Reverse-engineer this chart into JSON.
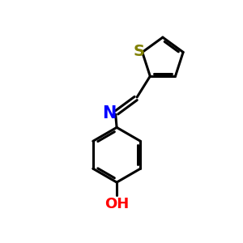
{
  "background_color": "#ffffff",
  "bond_color": "#000000",
  "S_color": "#808000",
  "N_color": "#0000ff",
  "O_color": "#ff0000",
  "bond_width": 2.2,
  "font_size_atom": 13,
  "fig_width": 3.0,
  "fig_height": 3.0,
  "dpi": 100,
  "xlim": [
    0,
    10
  ],
  "ylim": [
    0,
    10
  ]
}
